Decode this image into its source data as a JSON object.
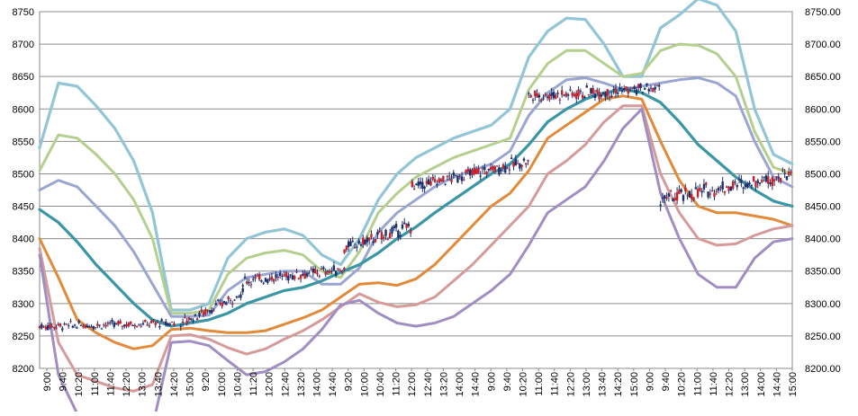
{
  "chart_data": {
    "type": "line",
    "title": "",
    "xlabel": "",
    "ylabel": "",
    "ylim": [
      8200,
      8750
    ],
    "grid": true,
    "legend": "none",
    "y_ticks_left": [
      "8200",
      "8250",
      "8300",
      "8350",
      "8400",
      "8450",
      "8500",
      "8550",
      "8600",
      "8650",
      "8700",
      "8750"
    ],
    "y_ticks_right": [
      "8200.00",
      "8250.00",
      "8300.00",
      "8350.00",
      "8400.00",
      "8450.00",
      "8500.00",
      "8550.00",
      "8600.00",
      "8650.00",
      "8700.00",
      "8750.00"
    ],
    "x_tick_labels": [
      "9:00",
      "9:40",
      "10:20",
      "11:00",
      "11:40",
      "12:20",
      "13:00",
      "13:40",
      "14:20",
      "15:00",
      "9:20",
      "10:00",
      "10:40",
      "11:20",
      "12:00",
      "12:40",
      "13:20",
      "14:00",
      "14:40",
      "9:20",
      "10:00",
      "10:40",
      "11:20",
      "12:00",
      "12:40",
      "13:20",
      "14:00",
      "14:40",
      "9:00",
      "9:40",
      "10:20",
      "11:00",
      "11:40",
      "12:20",
      "13:00",
      "13:40",
      "14:20",
      "15:00",
      "9:00",
      "9:40",
      "10:20",
      "11:00",
      "11:40",
      "12:20",
      "13:00",
      "14:00",
      "14:40",
      "15:00"
    ],
    "x_count": 48,
    "colors": {
      "band3": "#92c5d6",
      "band2": "#b5cf8f",
      "band1": "#9aa6d1",
      "mid": "#3a96a5",
      "lower1": "#e08a3a",
      "lower2": "#d59a9a",
      "lower3": "#a08ec2",
      "candle_up": "#1c2f6b",
      "candle_down": "#cc1f2a"
    },
    "series": [
      {
        "key": "band3",
        "width": 3.2,
        "values": [
          8540,
          8640,
          8635,
          8605,
          8570,
          8520,
          8440,
          8290,
          8290,
          8300,
          8370,
          8400,
          8410,
          8415,
          8405,
          8375,
          8360,
          8400,
          8460,
          8500,
          8525,
          8540,
          8555,
          8565,
          8575,
          8600,
          8680,
          8720,
          8740,
          8738,
          8700,
          8650,
          8650,
          8725,
          8745,
          8770,
          8760,
          8720,
          8600,
          8530,
          8515
        ]
      },
      {
        "key": "band2",
        "width": 3.0,
        "values": [
          8505,
          8560,
          8555,
          8530,
          8500,
          8460,
          8400,
          8285,
          8285,
          8290,
          8345,
          8370,
          8378,
          8382,
          8375,
          8350,
          8340,
          8380,
          8440,
          8470,
          8495,
          8510,
          8525,
          8535,
          8545,
          8555,
          8630,
          8670,
          8690,
          8690,
          8670,
          8650,
          8655,
          8690,
          8700,
          8698,
          8685,
          8650,
          8565,
          8510,
          8500
        ]
      },
      {
        "key": "band1",
        "width": 3.0,
        "values": [
          8475,
          8490,
          8480,
          8450,
          8420,
          8380,
          8330,
          8280,
          8280,
          8282,
          8320,
          8340,
          8345,
          8350,
          8350,
          8330,
          8330,
          8355,
          8410,
          8440,
          8460,
          8480,
          8495,
          8505,
          8515,
          8535,
          8590,
          8625,
          8645,
          8648,
          8640,
          8630,
          8635,
          8640,
          8645,
          8648,
          8640,
          8620,
          8550,
          8495,
          8480
        ]
      },
      {
        "key": "mid",
        "width": 3.2,
        "values": [
          8445,
          8425,
          8395,
          8360,
          8330,
          8300,
          8275,
          8265,
          8270,
          8275,
          8285,
          8300,
          8310,
          8320,
          8325,
          8335,
          8348,
          8360,
          8378,
          8400,
          8418,
          8440,
          8460,
          8480,
          8500,
          8515,
          8545,
          8580,
          8600,
          8615,
          8625,
          8630,
          8625,
          8610,
          8580,
          8545,
          8520,
          8495,
          8475,
          8458,
          8450
        ]
      },
      {
        "key": "lower1",
        "width": 3.0,
        "values": [
          8400,
          8340,
          8275,
          8255,
          8240,
          8230,
          8235,
          8260,
          8262,
          8258,
          8255,
          8255,
          8258,
          8268,
          8278,
          8290,
          8310,
          8330,
          8332,
          8328,
          8338,
          8360,
          8390,
          8420,
          8450,
          8470,
          8505,
          8555,
          8575,
          8595,
          8615,
          8620,
          8615,
          8550,
          8490,
          8450,
          8440,
          8440,
          8435,
          8430,
          8420
        ]
      },
      {
        "key": "lower2",
        "width": 3.0,
        "values": [
          8385,
          8240,
          8190,
          8180,
          8170,
          8165,
          8175,
          8250,
          8252,
          8245,
          8232,
          8222,
          8230,
          8245,
          8258,
          8275,
          8295,
          8315,
          8302,
          8295,
          8298,
          8310,
          8335,
          8360,
          8390,
          8420,
          8450,
          8500,
          8520,
          8545,
          8580,
          8605,
          8605,
          8500,
          8440,
          8400,
          8390,
          8392,
          8405,
          8415,
          8420
        ]
      },
      {
        "key": "lower3",
        "width": 3.0,
        "values": [
          8375,
          8190,
          8130,
          8120,
          8110,
          8100,
          8110,
          8240,
          8242,
          8235,
          8212,
          8190,
          8195,
          8210,
          8230,
          8260,
          8298,
          8305,
          8285,
          8270,
          8265,
          8270,
          8280,
          8300,
          8320,
          8345,
          8390,
          8440,
          8460,
          8480,
          8520,
          8570,
          8600,
          8470,
          8400,
          8345,
          8325,
          8325,
          8370,
          8395,
          8400
        ]
      }
    ],
    "candle_segments": [
      {
        "from": 0,
        "to": 7.2,
        "base": 8265,
        "amp": 5,
        "vol": 8
      },
      {
        "from": 7.5,
        "to": 10.8,
        "base": 8270,
        "amp": 45,
        "vol": 10
      },
      {
        "from": 10.8,
        "to": 16.2,
        "base": 8335,
        "amp": 18,
        "vol": 10
      },
      {
        "from": 16.2,
        "to": 19.8,
        "base": 8385,
        "amp": 35,
        "vol": 12
      },
      {
        "from": 19.8,
        "to": 26,
        "base": 8480,
        "amp": 40,
        "vol": 12
      },
      {
        "from": 26,
        "to": 33,
        "base": 8620,
        "amp": 12,
        "vol": 12
      },
      {
        "from": 33,
        "to": 40,
        "base": 8460,
        "amp": 40,
        "vol": 14
      }
    ]
  }
}
